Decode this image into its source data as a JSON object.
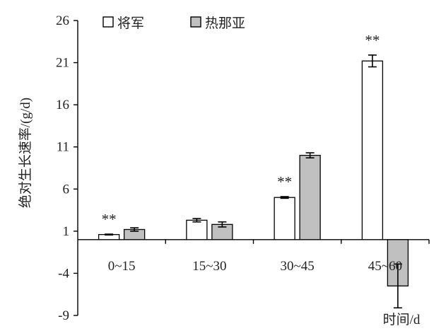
{
  "chart_data": {
    "type": "bar",
    "xlabel": "时间/d",
    "ylabel": "绝对生长速率/(g/d)",
    "ylim": [
      -9,
      26
    ],
    "yticks": [
      -9,
      -4,
      1,
      6,
      11,
      16,
      21,
      26
    ],
    "categories": [
      "0~15",
      "15~30",
      "30~45",
      "45~60"
    ],
    "series": [
      {
        "name": "将军",
        "color": "#ffffff",
        "values": [
          0.6,
          2.3,
          5.0,
          21.2
        ],
        "errors": [
          0.05,
          0.2,
          0.1,
          0.7
        ]
      },
      {
        "name": "热那亚",
        "color": "#c0c0c0",
        "values": [
          1.2,
          1.8,
          10.0,
          -5.5
        ],
        "errors": [
          0.2,
          0.3,
          0.3,
          2.6
        ]
      }
    ],
    "annotations": [
      {
        "category": "0~15",
        "text": "**"
      },
      {
        "category": "30~45",
        "text": "**"
      },
      {
        "category": "45~60",
        "text": "**"
      }
    ],
    "legend_position": "top-left",
    "grid": false
  }
}
